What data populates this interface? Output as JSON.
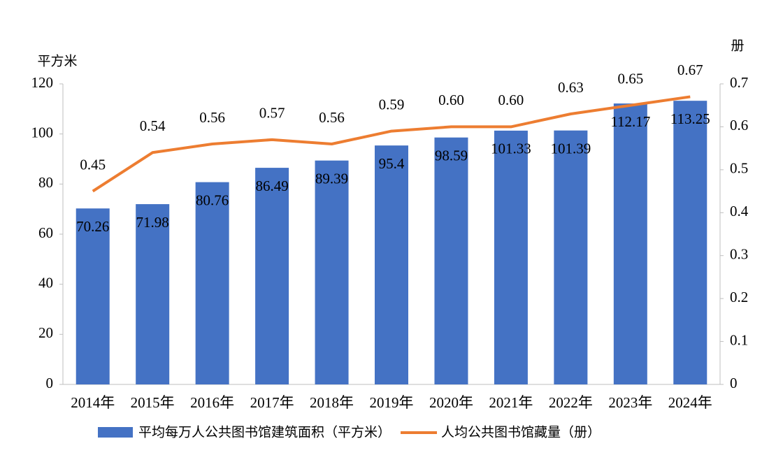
{
  "chart_data": {
    "type": "bar",
    "y_label": "平方米",
    "y2_label": "册",
    "categories": [
      "2014年",
      "2015年",
      "2016年",
      "2017年",
      "2018年",
      "2019年",
      "2020年",
      "2021年",
      "2022年",
      "2023年",
      "2024年"
    ],
    "series": [
      {
        "name": "平均每万人公共图书馆建筑面积（平方米）",
        "type": "bar",
        "color": "#4472c4",
        "values": [
          70.26,
          71.98,
          80.76,
          86.49,
          89.39,
          95.4,
          98.59,
          101.33,
          101.39,
          112.17,
          113.25
        ]
      },
      {
        "name": "人均公共图书馆藏量（册）",
        "type": "line",
        "axis": "y2",
        "color": "#ed7d31",
        "values": [
          0.45,
          0.54,
          0.56,
          0.57,
          0.56,
          0.59,
          0.6,
          0.6,
          0.63,
          0.65,
          0.67
        ],
        "value_labels": [
          "0.45",
          "0.54",
          "0.56",
          "0.57",
          "0.56",
          "0.59",
          "0.60",
          "0.60",
          "0.63",
          "0.65",
          "0.67"
        ]
      }
    ],
    "ylim": [
      0,
      120
    ],
    "yticks": [
      0,
      20,
      40,
      60,
      80,
      100,
      120
    ],
    "y2lim": [
      0,
      0.7
    ],
    "y2ticks": [
      0,
      0.1,
      0.2,
      0.3,
      0.4,
      0.5,
      0.6,
      0.7
    ]
  }
}
